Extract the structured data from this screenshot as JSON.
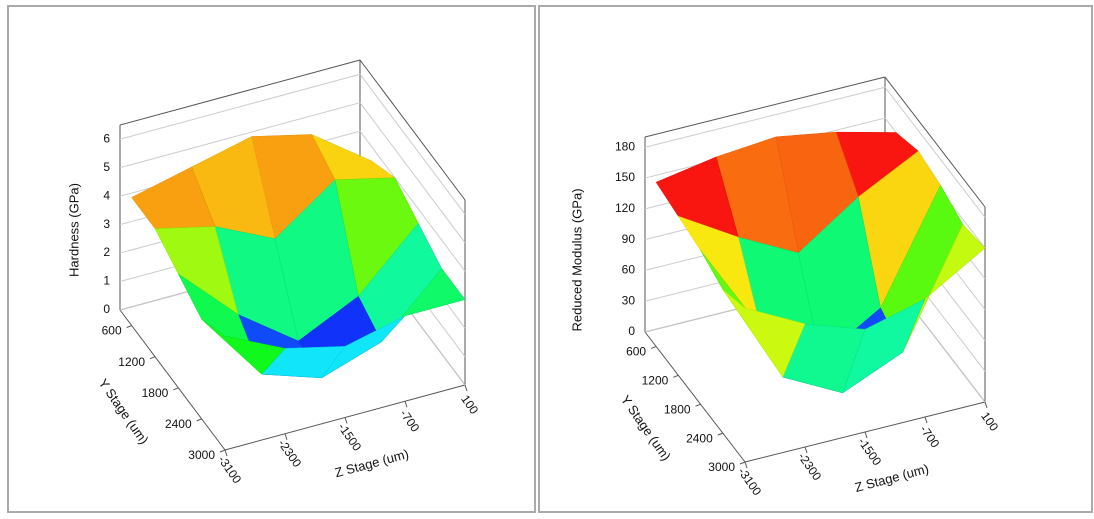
{
  "chart_data": [
    {
      "type": "surface",
      "z_label": "Hardness (GPa)",
      "y_label": "Y Stage (um)",
      "x_label": "Z Stage (um)",
      "x": [
        -3100,
        -2300,
        -1500,
        -700,
        100
      ],
      "y": [
        600,
        1200,
        1800,
        2400,
        3000
      ],
      "z": [
        [
          4.5,
          5,
          5.5,
          5,
          3.5
        ],
        [
          4.5,
          4,
          3,
          4.5,
          4
        ],
        [
          4,
          2,
          0.5,
          1.5,
          3.5
        ],
        [
          3.5,
          1,
          0.3,
          1,
          3
        ],
        [
          4,
          3,
          2.5,
          3,
          3
        ]
      ],
      "xlim": [
        -3100,
        100
      ],
      "ylim": [
        300,
        3000
      ],
      "zlim": [
        0,
        6.5
      ],
      "xticks": [
        -3100,
        -2300,
        -1500,
        -700,
        100
      ],
      "yticks": [
        600,
        1200,
        1800,
        2400,
        3000
      ],
      "zticks": [
        0,
        1,
        2,
        3,
        4,
        5,
        6
      ]
    },
    {
      "type": "surface",
      "z_label": "Reduced Modulus (GPa)",
      "y_label": "Y Stage (um)",
      "x_label": "Z Stage (um)",
      "x": [
        -3100,
        -2300,
        -1500,
        -700,
        100
      ],
      "y": [
        600,
        1200,
        1800,
        2400,
        3000
      ],
      "z": [
        [
          160,
          170,
          175,
          165,
          150
        ],
        [
          155,
          120,
          90,
          130,
          160
        ],
        [
          150,
          60,
          15,
          50,
          155
        ],
        [
          140,
          40,
          10,
          35,
          145
        ],
        [
          150,
          120,
          100,
          115,
          150
        ]
      ],
      "xlim": [
        -3100,
        100
      ],
      "ylim": [
        300,
        3000
      ],
      "zlim": [
        0,
        190
      ],
      "xticks": [
        -3100,
        -2300,
        -1500,
        -700,
        100
      ],
      "yticks": [
        600,
        1200,
        1800,
        2400,
        3000
      ],
      "zticks": [
        0,
        30,
        60,
        90,
        120,
        150,
        180
      ]
    }
  ]
}
